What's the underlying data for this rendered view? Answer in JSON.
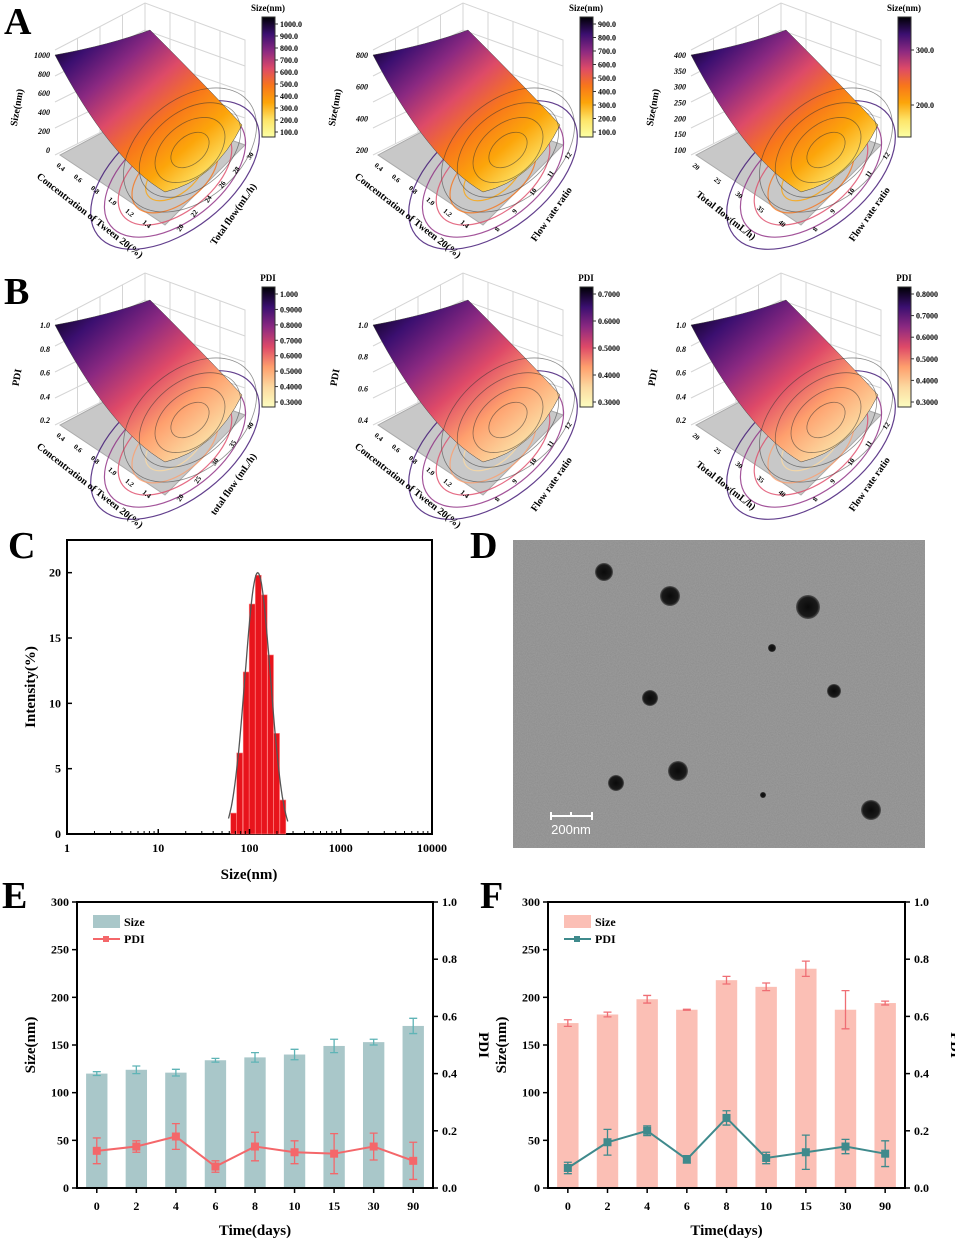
{
  "panel_labels": {
    "A": "A",
    "B": "B",
    "C": "C",
    "D": "D",
    "E": "E",
    "F": "F"
  },
  "surfaces": [
    {
      "row": "A",
      "cb_title": "Size(nm)",
      "cb_ticks": [
        "1000.0",
        "900.0",
        "800.0",
        "700.0",
        "600.0",
        "500.0",
        "400.0",
        "300.0",
        "200.0",
        "100.0"
      ],
      "z_title": "Size(nm)",
      "z_ticks": [
        "1000",
        "800",
        "600",
        "400",
        "200",
        "0"
      ],
      "x_title": "Concentration of Tween 20(%)",
      "x_ticks": [
        "0.4",
        "0.6",
        "0.8",
        "1.0",
        "1.2",
        "1.4"
      ],
      "y_title": "Total flow(mL/h)",
      "y_ticks": [
        "20",
        "22",
        "24",
        "26",
        "28",
        "30"
      ],
      "colormap": "inferno"
    },
    {
      "row": "A",
      "cb_title": "Size(nm)",
      "cb_ticks": [
        "900.0",
        "800.0",
        "700.0",
        "600.0",
        "500.0",
        "400.0",
        "300.0",
        "200.0",
        "100.0"
      ],
      "z_title": "Size(nm)",
      "z_ticks": [
        "800",
        "600",
        "400",
        "200"
      ],
      "x_title": "Concentration of Tween 20(%)",
      "x_ticks": [
        "0.4",
        "0.6",
        "0.8",
        "1.0",
        "1.2",
        "1.4"
      ],
      "y_title": "Flow rate ratio",
      "y_ticks": [
        "8",
        "9",
        "10",
        "11",
        "12"
      ],
      "colormap": "inferno"
    },
    {
      "row": "A",
      "cb_title": "Size(nm)",
      "cb_ticks": [
        "300.0",
        "200.0"
      ],
      "z_title": "Size(nm)",
      "z_ticks": [
        "400",
        "350",
        "300",
        "250",
        "200",
        "150",
        "100"
      ],
      "x_title": "Total flow(mL/h)",
      "x_ticks": [
        "20",
        "25",
        "30",
        "35",
        "40"
      ],
      "y_title": "Flow rate ratio",
      "y_ticks": [
        "8",
        "9",
        "10",
        "11",
        "12"
      ],
      "colormap": "inferno"
    },
    {
      "row": "B",
      "cb_title": "PDI",
      "cb_ticks": [
        "1.000",
        "0.9000",
        "0.8000",
        "0.7000",
        "0.6000",
        "0.5000",
        "0.4000",
        "0.3000"
      ],
      "z_title": "PDI",
      "z_ticks": [
        "1.0",
        "0.8",
        "0.6",
        "0.4",
        "0.2"
      ],
      "x_title": "Concentration of Tween 20(%)",
      "x_ticks": [
        "0.4",
        "0.6",
        "0.8",
        "1.0",
        "1.2",
        "1.4"
      ],
      "y_title": "total flow (mL/h)",
      "y_ticks": [
        "20",
        "25",
        "30",
        "35",
        "40"
      ],
      "colormap": "magma"
    },
    {
      "row": "B",
      "cb_title": "PDI",
      "cb_ticks": [
        "0.7000",
        "0.6000",
        "0.5000",
        "0.4000",
        "0.3000"
      ],
      "z_title": "PDI",
      "z_ticks": [
        "1.0",
        "0.8",
        "0.6",
        "0.4"
      ],
      "x_title": "Concentration of Tween 20(%)",
      "x_ticks": [
        "0.4",
        "0.6",
        "0.8",
        "1.0",
        "1.2",
        "1.4"
      ],
      "y_title": "Flow rate ratio",
      "y_ticks": [
        "8",
        "9",
        "10",
        "11",
        "12"
      ],
      "colormap": "magma"
    },
    {
      "row": "B",
      "cb_title": "PDI",
      "cb_ticks": [
        "0.8000",
        "0.7000",
        "0.6000",
        "0.5000",
        "0.4000",
        "0.3000"
      ],
      "z_title": "PDI",
      "z_ticks": [
        "1.0",
        "0.8",
        "0.6",
        "0.4",
        "0.2"
      ],
      "x_title": "Total flow(mL/h)",
      "x_ticks": [
        "20",
        "25",
        "30",
        "35",
        "40"
      ],
      "y_title": "Flow rate ratio",
      "y_ticks": [
        "8",
        "9",
        "10",
        "11",
        "12"
      ],
      "colormap": "magma"
    }
  ],
  "colormaps": {
    "inferno": [
      "#000004",
      "#3b0f70",
      "#8c2981",
      "#dd4a68",
      "#f8761b",
      "#fca50a",
      "#fde468",
      "#fcffa4"
    ],
    "magma": [
      "#000004",
      "#3b0f70",
      "#8c2981",
      "#de4968",
      "#fe9f6d",
      "#fcd9a0",
      "#fcfdbf"
    ]
  },
  "chart_data": [
    {
      "panel": "C",
      "type": "bar",
      "x_scale": "log",
      "xlabel": "Size(nm)",
      "ylabel": "Intensity(%)",
      "xlim": [
        1,
        10000
      ],
      "ylim": [
        0,
        22.5
      ],
      "x_ticks": [
        "1",
        "10",
        "100",
        "1000",
        "10000"
      ],
      "y_ticks": [
        "0",
        "5",
        "10",
        "15",
        "20"
      ],
      "x": [
        67,
        78,
        92,
        107,
        125,
        145,
        170,
        198,
        232
      ],
      "values": [
        1.6,
        6.2,
        12.4,
        17.6,
        19.8,
        18.3,
        13.7,
        7.7,
        2.6
      ],
      "bar_color": "#e8141c",
      "fit_line": true
    },
    {
      "panel": "E",
      "type": "bar+line",
      "xlabel": "Time(days)",
      "ylabel": "Size(nm)",
      "ylabel_right": "PDI",
      "categories": [
        "0",
        "2",
        "4",
        "6",
        "8",
        "10",
        "15",
        "30",
        "90"
      ],
      "ylim": [
        0,
        300
      ],
      "ylim_right": [
        0,
        1.0
      ],
      "y_ticks": [
        "0",
        "50",
        "100",
        "150",
        "200",
        "250",
        "300"
      ],
      "y_ticks_right": [
        "0.0",
        "0.2",
        "0.4",
        "0.6",
        "0.8",
        "1.0"
      ],
      "series": [
        {
          "name": "Size",
          "type": "bar",
          "axis": "left",
          "color": "#a9c7c9",
          "err_color": "#5fb4b6",
          "values": [
            120,
            124,
            121,
            134,
            137,
            140,
            149,
            153,
            170
          ],
          "errors": [
            2,
            4,
            3.5,
            2,
            5,
            5.5,
            7,
            3,
            8
          ]
        },
        {
          "name": "PDI",
          "type": "line",
          "axis": "right",
          "color": "#f4676a",
          "values": [
            0.13,
            0.145,
            0.18,
            0.075,
            0.145,
            0.125,
            0.12,
            0.145,
            0.095
          ],
          "errors": [
            0.045,
            0.02,
            0.045,
            0.02,
            0.05,
            0.04,
            0.07,
            0.047,
            0.065
          ]
        }
      ]
    },
    {
      "panel": "F",
      "type": "bar+line",
      "xlabel": "Time(days)",
      "ylabel": "Size(nm)",
      "ylabel_right": "PDI",
      "categories": [
        "0",
        "2",
        "4",
        "6",
        "8",
        "10",
        "15",
        "30",
        "90"
      ],
      "ylim": [
        0,
        300
      ],
      "ylim_right": [
        0,
        1.0
      ],
      "y_ticks": [
        "0",
        "50",
        "100",
        "150",
        "200",
        "250",
        "300"
      ],
      "y_ticks_right": [
        "0.0",
        "0.2",
        "0.4",
        "0.6",
        "0.8",
        "1.0"
      ],
      "series": [
        {
          "name": "Size",
          "type": "bar",
          "axis": "left",
          "color": "#fbbfb5",
          "err_color": "#ef6e74",
          "values": [
            173,
            182,
            198,
            187,
            218,
            211,
            230,
            187,
            194
          ],
          "errors": [
            3.5,
            2.5,
            4,
            0.5,
            4,
            4,
            8,
            20,
            2
          ]
        },
        {
          "name": "PDI",
          "type": "line",
          "axis": "right",
          "color": "#3f8a8c",
          "values": [
            0.07,
            0.16,
            0.2,
            0.1,
            0.245,
            0.105,
            0.125,
            0.145,
            0.12
          ],
          "errors": [
            0.02,
            0.045,
            0.017,
            0.013,
            0.025,
            0.02,
            0.06,
            0.025,
            0.045
          ]
        }
      ]
    }
  ],
  "tem": {
    "scale_bar_label": "200nm",
    "background": "#8a8a8a"
  }
}
